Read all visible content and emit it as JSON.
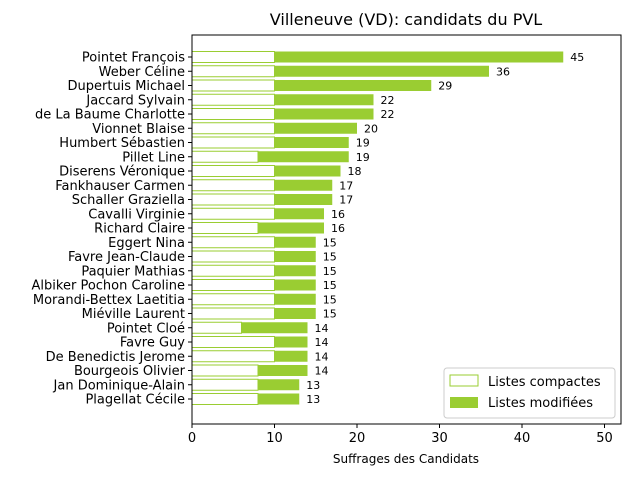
{
  "chart_data": {
    "type": "bar",
    "orientation": "horizontal",
    "stacked": true,
    "title": "Villeneuve (VD): candidats du PVL",
    "xlabel": "Suffrages des Candidats",
    "ylabel": "",
    "xlim": [
      0,
      52
    ],
    "xticks": [
      "0",
      "10",
      "20",
      "30",
      "40",
      "50"
    ],
    "grid": false,
    "legend_position": "lower-right",
    "colors": {
      "compact_edge": "#9acd32",
      "modified_fill": "#9acd32",
      "compact_fill": "#ffffff"
    },
    "categories": [
      "Pointet François",
      "Weber Céline",
      "Dupertuis Michael",
      "Jaccard Sylvain",
      "de La Baume Charlotte",
      "Vionnet Blaise",
      "Humbert Sébastien",
      "Pillet Line",
      "Diserens Véronique",
      "Fankhauser Carmen",
      "Schaller Graziella",
      "Cavalli Virginie",
      "Richard Claire",
      "Eggert Nina",
      "Favre Jean-Claude",
      "Paquier Mathias",
      "Albiker Pochon Caroline",
      "Morandi-Bettex Laetitia",
      "Miéville Laurent",
      "Pointet Cloé",
      "Favre Guy",
      "De Benedictis Jerome",
      "Bourgeois Olivier",
      "Jan Dominique-Alain",
      "Plagellat Cécile"
    ],
    "series": [
      {
        "name": "Listes compactes",
        "values": [
          10,
          10,
          10,
          10,
          10,
          10,
          10,
          8,
          10,
          10,
          10,
          10,
          8,
          10,
          10,
          10,
          10,
          10,
          10,
          6,
          10,
          10,
          8,
          8,
          8
        ]
      },
      {
        "name": "Listes modifiées",
        "values": [
          35,
          26,
          19,
          12,
          12,
          10,
          9,
          11,
          8,
          7,
          7,
          6,
          8,
          5,
          5,
          5,
          5,
          5,
          5,
          8,
          4,
          4,
          6,
          5,
          5
        ]
      }
    ],
    "totals": [
      "45",
      "36",
      "29",
      "22",
      "22",
      "20",
      "19",
      "19",
      "18",
      "17",
      "17",
      "16",
      "16",
      "15",
      "15",
      "15",
      "15",
      "15",
      "15",
      "14",
      "14",
      "14",
      "14",
      "13",
      "13"
    ]
  }
}
